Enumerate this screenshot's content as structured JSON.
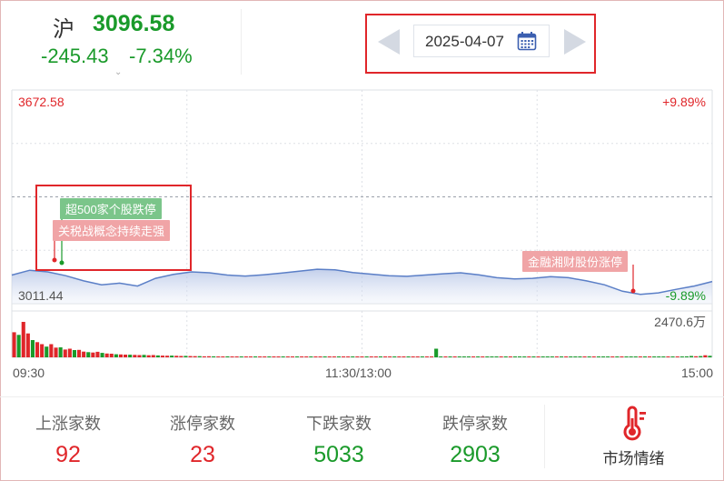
{
  "header": {
    "index_name": "沪",
    "price": "3096.58",
    "change": "-245.43",
    "change_pct": "-7.34%",
    "caret": "⌄"
  },
  "date_picker": {
    "date": "2025-04-07",
    "prev_icon": "triangle-left-icon",
    "next_icon": "triangle-right-icon",
    "calendar_icon": "calendar-icon"
  },
  "chart_data": {
    "type": "line",
    "price_axis": {
      "top": "3672.58",
      "bottom": "3011.44",
      "min": 3011.44,
      "max": 3672.58
    },
    "pct_axis": {
      "top": "+9.89%",
      "bottom": "-9.89%"
    },
    "x_ticks": [
      "09:30",
      "11:30/13:00",
      "15:00"
    ],
    "volume_max_label": "2470.6万",
    "series": [
      {
        "values": [
          3100,
          3115,
          3110,
          3098,
          3082,
          3070,
          3075,
          3066,
          3090,
          3102,
          3110,
          3107,
          3100,
          3097,
          3101,
          3106,
          3112,
          3118,
          3116,
          3108,
          3103,
          3098,
          3096,
          3100,
          3104,
          3107,
          3101,
          3092,
          3088,
          3090,
          3095,
          3092,
          3082,
          3070,
          3050,
          3040,
          3045,
          3056,
          3066,
          3080
        ]
      }
    ],
    "volume": {
      "max": 2470.6,
      "values": [
        1450,
        1300,
        2050,
        1380,
        1000,
        880,
        760,
        620,
        760,
        560,
        580,
        450,
        500,
        420,
        430,
        330,
        300,
        280,
        320,
        260,
        220,
        210,
        180,
        170,
        160,
        150,
        140,
        130,
        140,
        120,
        130,
        110,
        100,
        95,
        100,
        90,
        80,
        85,
        75,
        70,
        70,
        60,
        65,
        60,
        55,
        55,
        60,
        50,
        50,
        55,
        48,
        45,
        50,
        46,
        44,
        48,
        42,
        40,
        45,
        40,
        42,
        38,
        40,
        36,
        40,
        38,
        35,
        36,
        34,
        38,
        35,
        34,
        33,
        32,
        30,
        35,
        33,
        30,
        32,
        30,
        28,
        30,
        32,
        30,
        28,
        30,
        29,
        28,
        30,
        28,
        27,
        500,
        30,
        28,
        30,
        32,
        30,
        29,
        28,
        30,
        27,
        29,
        28,
        30,
        31,
        28,
        27,
        30,
        29,
        28,
        27,
        26,
        28,
        30,
        29,
        28,
        27,
        30,
        28,
        29,
        28,
        27,
        26,
        28,
        30,
        32,
        31,
        30,
        28,
        29,
        31,
        30,
        32,
        31,
        33,
        30,
        32,
        34,
        33,
        35,
        38,
        36,
        40,
        38,
        42,
        60,
        80,
        65,
        75,
        120,
        90
      ]
    },
    "annotations": [
      {
        "text": "超500家个股跌停",
        "color": "green"
      },
      {
        "text": "关税战概念持续走强",
        "color": "red"
      },
      {
        "text": "金融湘财股份涨停",
        "color": "red"
      }
    ]
  },
  "stats": [
    {
      "label": "上涨家数",
      "value": "92",
      "color": "#e0262a"
    },
    {
      "label": "涨停家数",
      "value": "23",
      "color": "#e0262a"
    },
    {
      "label": "下跌家数",
      "value": "5033",
      "color": "#1a9a2a"
    },
    {
      "label": "跌停家数",
      "value": "2903",
      "color": "#1a9a2a"
    }
  ],
  "market_mood": {
    "label": "市场情绪",
    "icon": "thermometer-icon"
  }
}
